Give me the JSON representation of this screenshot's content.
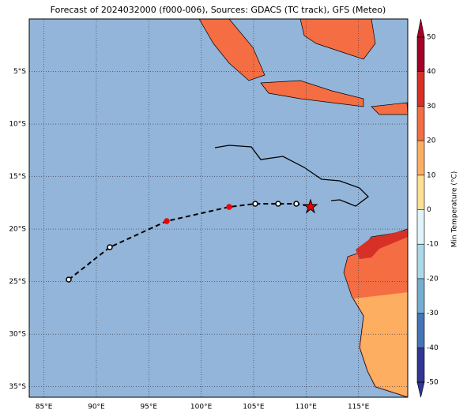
{
  "chart_data": {
    "type": "map",
    "title": "Forecast of 2024032000 (f000-006), Sources: GDACS (TC track), GFS (Meteo)",
    "xlim": [
      83.6,
      119.7
    ],
    "ylim": [
      -36,
      0
    ],
    "xticks": [
      {
        "value": 85,
        "label": "85°E"
      },
      {
        "value": 90,
        "label": "90°E"
      },
      {
        "value": 95,
        "label": "95°E"
      },
      {
        "value": 100,
        "label": "100°E"
      },
      {
        "value": 105,
        "label": "105°E"
      },
      {
        "value": 110,
        "label": "110°E"
      },
      {
        "value": 115,
        "label": "115°E"
      }
    ],
    "yticks": [
      {
        "value": -5,
        "label": "5°S"
      },
      {
        "value": -10,
        "label": "10°S"
      },
      {
        "value": -15,
        "label": "15°S"
      },
      {
        "value": -20,
        "label": "20°S"
      },
      {
        "value": -25,
        "label": "25°S"
      },
      {
        "value": -30,
        "label": "30°S"
      },
      {
        "value": -35,
        "label": "35°S"
      }
    ],
    "grid": true,
    "colorbar": {
      "label": "Min Temperature (°C)",
      "lim": [
        -50,
        50
      ],
      "ticks": [
        -50,
        -40,
        -30,
        -20,
        -10,
        0,
        10,
        20,
        30,
        40,
        50
      ],
      "colors": [
        "#313695",
        "#4575b4",
        "#74add1",
        "#abd9e9",
        "#e0f3f8",
        "#fee090",
        "#fdae61",
        "#f46d43",
        "#d73027",
        "#a50026"
      ]
    }
  }
}
